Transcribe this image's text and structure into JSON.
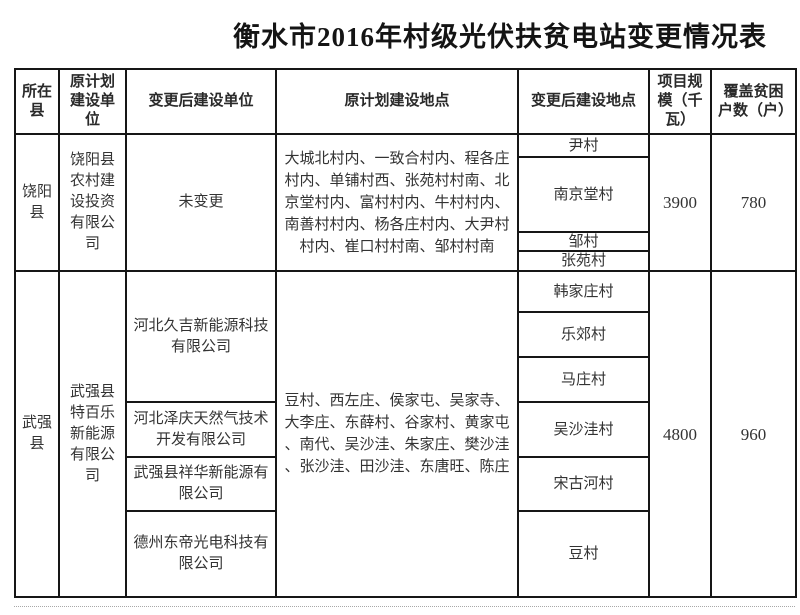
{
  "title": "衡水市2016年村级光伏扶贫电站变更情况表",
  "table": {
    "columns": [
      {
        "label": "所在县"
      },
      {
        "label": "原计划建设单位"
      },
      {
        "label": "变更后建设单位"
      },
      {
        "label": "原计划建设地点"
      },
      {
        "label": "变更后建设地点"
      },
      {
        "label": "项目规模（千瓦）"
      },
      {
        "label": "覆盖贫困户数（户）"
      }
    ],
    "groups": [
      {
        "county": "饶阳县",
        "original_unit": "饶阳县农村建设投资有限公司",
        "changed_units": [
          {
            "name": "未变更",
            "span": 4
          }
        ],
        "original_locations": "大城北村内、一致合村内、程各庄村内、单铺村西、张苑村村南、北京堂村内、富村村内、牛村村内、南善村村内、杨各庄村内、大尹村村内、崔口村村南、邹村村南",
        "changed_locations": [
          "尹村",
          "南京堂村",
          "邹村",
          "张苑村"
        ],
        "scale_kw": "3900",
        "poor_households": "780"
      },
      {
        "county": "武强县",
        "original_unit": "武强县特百乐新能源有限公司",
        "changed_units": [
          {
            "name": "河北久吉新能源科技有限公司",
            "span": 3
          },
          {
            "name": "河北泽庆天然气技术开发有限公司",
            "span": 1
          },
          {
            "name": "武强县祥华新能源有限公司",
            "span": 1
          },
          {
            "name": "德州东帝光电科技有限公司",
            "span": 1
          }
        ],
        "original_locations": "豆村、西左庄、侯家屯、吴家寺、大李庄、东薛村、谷家村、黄家屯、南代、吴沙洼、朱家庄、樊沙洼、张沙洼、田沙洼、东唐旺、陈庄",
        "changed_locations": [
          "韩家庄村",
          "乐郊村",
          "马庄村",
          "吴沙洼村",
          "宋古河村",
          "豆村"
        ],
        "scale_kw": "4800",
        "poor_households": "960"
      }
    ]
  }
}
